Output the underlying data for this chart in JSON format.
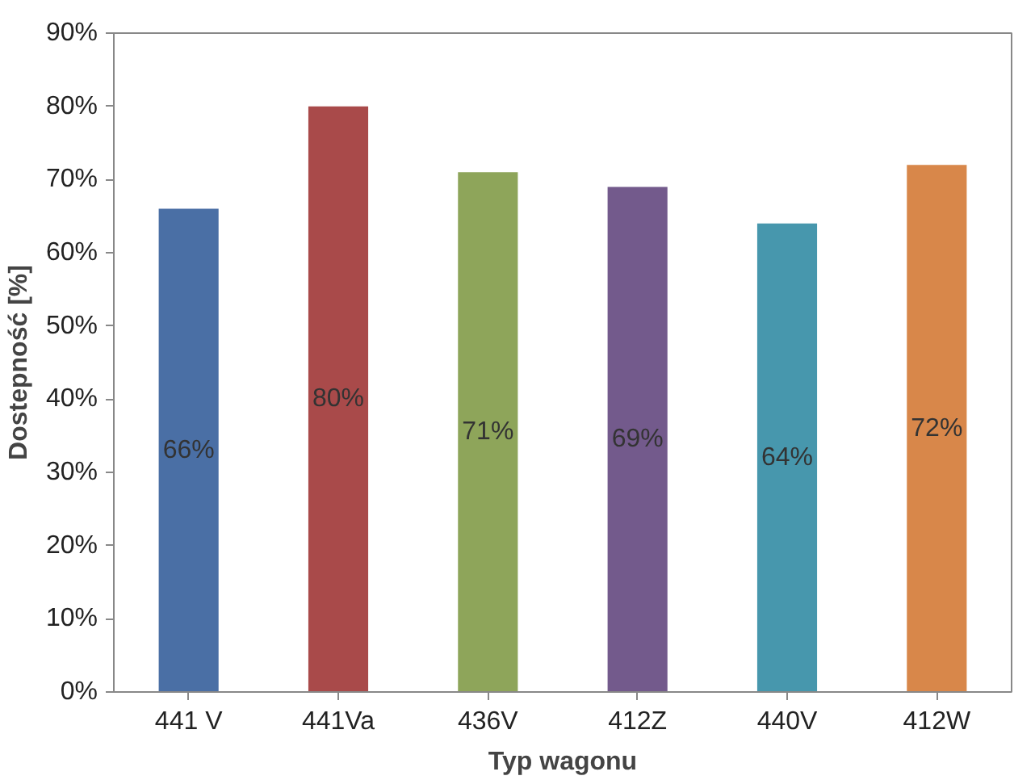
{
  "chart_data": {
    "type": "bar",
    "xlabel": "Typ wagonu",
    "ylabel": "Dostepność [%]",
    "categories": [
      "441 V",
      "441Va",
      "436V",
      "412Z",
      "440V",
      "412W"
    ],
    "values": [
      66,
      80,
      71,
      69,
      64,
      72
    ],
    "colors": [
      "#4a6fa5",
      "#a94a4a",
      "#8ea55a",
      "#735a8c",
      "#4797ad",
      "#d8874a"
    ],
    "value_labels": [
      "66%",
      "80%",
      "71%",
      "69%",
      "64%",
      "72%"
    ],
    "ylim": [
      0,
      90
    ],
    "yticks": [
      {
        "value": 0,
        "label": "0%"
      },
      {
        "value": 10,
        "label": "10%"
      },
      {
        "value": 20,
        "label": "20%"
      },
      {
        "value": 30,
        "label": "30%"
      },
      {
        "value": 40,
        "label": "40%"
      },
      {
        "value": 50,
        "label": "50%"
      },
      {
        "value": 60,
        "label": "60%"
      },
      {
        "value": 70,
        "label": "70%"
      },
      {
        "value": 80,
        "label": "80%"
      },
      {
        "value": 90,
        "label": "90%"
      }
    ],
    "grid": false
  }
}
